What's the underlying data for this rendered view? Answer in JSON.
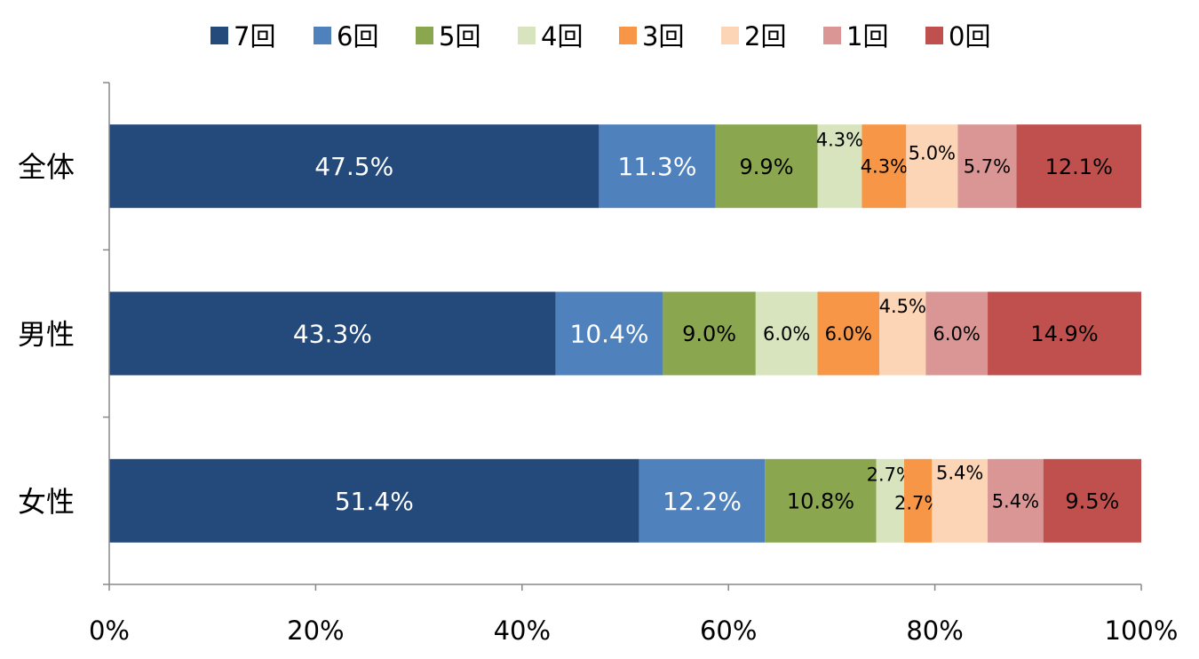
{
  "chart_data": {
    "type": "bar",
    "orientation": "horizontal",
    "stacked": "percent",
    "title": "",
    "xlabel": "",
    "ylabel": "",
    "xlim": [
      0,
      100
    ],
    "x_ticks": [
      "0%",
      "20%",
      "40%",
      "60%",
      "80%",
      "100%"
    ],
    "legend_position": "top",
    "categories": [
      "全体",
      "男性",
      "女性"
    ],
    "series": [
      {
        "name": "7回",
        "color": "#24497B",
        "values": [
          47.5,
          43.3,
          51.4
        ]
      },
      {
        "name": "6回",
        "color": "#4F81BD",
        "values": [
          11.3,
          10.4,
          12.2
        ]
      },
      {
        "name": "5回",
        "color": "#8AA64F",
        "values": [
          9.9,
          9.0,
          10.8
        ]
      },
      {
        "name": "4回",
        "color": "#D7E4BD",
        "values": [
          4.3,
          6.0,
          2.7
        ]
      },
      {
        "name": "3回",
        "color": "#F79646",
        "values": [
          4.3,
          6.0,
          2.7
        ]
      },
      {
        "name": "2回",
        "color": "#FBD5B5",
        "values": [
          5.0,
          4.5,
          5.4
        ]
      },
      {
        "name": "1回",
        "color": "#D99694",
        "values": [
          5.7,
          6.0,
          5.4
        ]
      },
      {
        "name": "0回",
        "color": "#C0504D",
        "values": [
          12.1,
          14.9,
          9.5
        ]
      }
    ]
  }
}
